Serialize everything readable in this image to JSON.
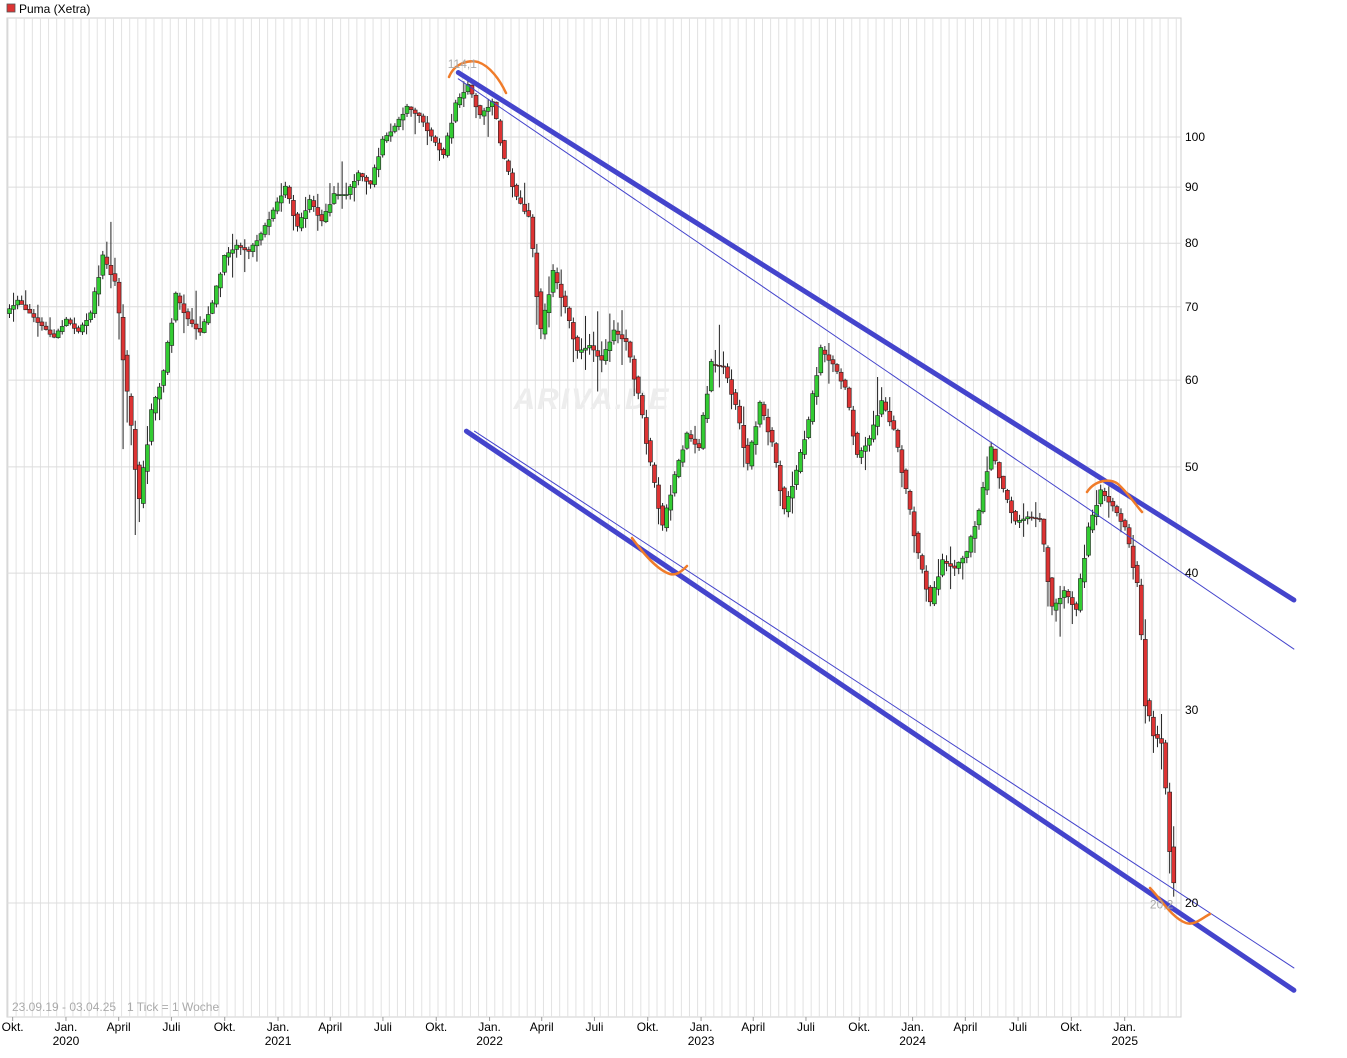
{
  "chart_data": {
    "type": "candlestick",
    "title": "Puma (Xetra)",
    "y_scale": "log",
    "ylim": [
      17.5,
      120
    ],
    "y_ticks": [
      20,
      30,
      40,
      50,
      60,
      70,
      80,
      90,
      100
    ],
    "y_tick_labels": [
      "20",
      "30",
      "40",
      "50",
      "60",
      "70",
      "80",
      "90",
      "100"
    ],
    "xlim": [
      "2019-09-23",
      "2025-04-03"
    ],
    "x_month_ticks": [
      {
        "date": "2019-10-01",
        "label": "Okt."
      },
      {
        "date": "2020-01-01",
        "label": "Jan."
      },
      {
        "date": "2020-04-01",
        "label": "April"
      },
      {
        "date": "2020-07-01",
        "label": "Juli"
      },
      {
        "date": "2020-10-01",
        "label": "Okt."
      },
      {
        "date": "2021-01-01",
        "label": "Jan."
      },
      {
        "date": "2021-04-01",
        "label": "April"
      },
      {
        "date": "2021-07-01",
        "label": "Juli"
      },
      {
        "date": "2021-10-01",
        "label": "Okt."
      },
      {
        "date": "2022-01-01",
        "label": "Jan."
      },
      {
        "date": "2022-04-01",
        "label": "April"
      },
      {
        "date": "2022-07-01",
        "label": "Juli"
      },
      {
        "date": "2022-10-01",
        "label": "Okt."
      },
      {
        "date": "2023-01-01",
        "label": "Jan."
      },
      {
        "date": "2023-04-01",
        "label": "April"
      },
      {
        "date": "2023-07-01",
        "label": "Juli"
      },
      {
        "date": "2023-10-01",
        "label": "Okt."
      },
      {
        "date": "2024-01-01",
        "label": "Jan."
      },
      {
        "date": "2024-04-01",
        "label": "April"
      },
      {
        "date": "2024-07-01",
        "label": "Juli"
      },
      {
        "date": "2024-10-01",
        "label": "Okt."
      },
      {
        "date": "2025-01-01",
        "label": "Jan."
      }
    ],
    "x_year_ticks": [
      {
        "date": "2020-01-01",
        "label": "2020"
      },
      {
        "date": "2021-01-01",
        "label": "2021"
      },
      {
        "date": "2022-01-01",
        "label": "2022"
      },
      {
        "date": "2023-01-01",
        "label": "2023"
      },
      {
        "date": "2024-01-01",
        "label": "2024"
      },
      {
        "date": "2025-01-01",
        "label": "2025"
      }
    ],
    "range_label": "23.09.19 - 03.04.25",
    "tick_label": "1 Tick = 1 Woche",
    "watermark": "ARIVA.DE",
    "annotations": {
      "high": {
        "date": "2021-11-15",
        "value": 114.1,
        "label": "114,1"
      },
      "low": {
        "date": "2025-03-31",
        "value": 20.2,
        "label": "20,2"
      }
    },
    "up_color": "#33cc33",
    "down_color": "#dd3333",
    "trendline_color": "#4444cc",
    "marker_color": "#f07c2a",
    "trend_channel": {
      "upper_thick": [
        {
          "date": "2021-11-08",
          "value": 114.5
        },
        {
          "date": "2025-10-20",
          "value": 37.8
        }
      ],
      "upper_thin": [
        {
          "date": "2021-11-08",
          "value": 113
        },
        {
          "date": "2025-10-20",
          "value": 34.1
        }
      ],
      "lower_thin": [
        {
          "date": "2021-12-06",
          "value": 53.9
        },
        {
          "date": "2025-10-20",
          "value": 17.45
        }
      ],
      "lower_thick": [
        {
          "date": "2021-11-22",
          "value": 53.9
        },
        {
          "date": "2025-10-20",
          "value": 16.65
        }
      ]
    },
    "candles_ohlc": [
      [
        "2019-09-23",
        69.0,
        72.8,
        67.2,
        70.9
      ],
      [
        "2019-10-14",
        70.9,
        73.1,
        69.0,
        69.0
      ],
      [
        "2019-11-04",
        69.0,
        70.9,
        65.2,
        67.2
      ],
      [
        "2019-11-25",
        67.2,
        69.0,
        65.2,
        65.6
      ],
      [
        "2019-12-16",
        65.6,
        69.0,
        65.2,
        68.1
      ],
      [
        "2020-01-06",
        68.1,
        69.0,
        65.6,
        66.4
      ],
      [
        "2020-01-27",
        66.4,
        70.0,
        65.2,
        69.0
      ],
      [
        "2020-02-17",
        69.0,
        79.6,
        67.2,
        77.7
      ],
      [
        "2020-03-09",
        77.7,
        85.0,
        71.6,
        73.7
      ],
      [
        "2020-03-30",
        73.7,
        75.6,
        47.3,
        58.0
      ],
      [
        "2020-04-20",
        58.0,
        59.0,
        39.9,
        46.3
      ],
      [
        "2020-05-11",
        46.3,
        58.1,
        45.0,
        56.0
      ],
      [
        "2020-06-01",
        56.0,
        61.5,
        53.5,
        61.0
      ],
      [
        "2020-06-22",
        61.0,
        72.3,
        60.0,
        71.6
      ],
      [
        "2020-07-13",
        71.6,
        73.0,
        65.2,
        68.1
      ],
      [
        "2020-08-03",
        68.1,
        73.0,
        64.8,
        66.3
      ],
      [
        "2020-08-24",
        66.3,
        71.6,
        66.0,
        70.4
      ],
      [
        "2020-09-14",
        70.4,
        78.0,
        69.0,
        77.7
      ],
      [
        "2020-10-05",
        77.7,
        82.3,
        73.8,
        79.6
      ],
      [
        "2020-10-26",
        79.6,
        81.0,
        75.0,
        78.6
      ],
      [
        "2020-11-16",
        78.6,
        82.5,
        76.0,
        81.5
      ],
      [
        "2020-12-07",
        81.5,
        87.0,
        80.0,
        85.6
      ],
      [
        "2020-12-28",
        85.6,
        92.4,
        84.0,
        90.0
      ],
      [
        "2021-01-18",
        90.0,
        91.0,
        80.0,
        82.6
      ],
      [
        "2021-02-08",
        82.6,
        90.0,
        81.0,
        87.5
      ],
      [
        "2021-03-01",
        87.5,
        90.0,
        81.0,
        83.7
      ],
      [
        "2021-03-22",
        83.7,
        92.6,
        83.0,
        88.6
      ],
      [
        "2021-04-12",
        88.6,
        95.0,
        86.0,
        88.6
      ],
      [
        "2021-05-03",
        88.6,
        94.0,
        86.0,
        92.6
      ],
      [
        "2021-05-24",
        92.6,
        93.0,
        88.0,
        90.5
      ],
      [
        "2021-06-14",
        90.5,
        101.0,
        89.0,
        99.2
      ],
      [
        "2021-07-05",
        99.2,
        104.0,
        98.0,
        102.2
      ],
      [
        "2021-07-26",
        102.2,
        108.0,
        100.0,
        106.5
      ],
      [
        "2021-08-16",
        106.5,
        107.0,
        100.0,
        104.5
      ],
      [
        "2021-09-06",
        104.5,
        106.0,
        97.0,
        100.0
      ],
      [
        "2021-09-27",
        100.0,
        101.0,
        94.0,
        96.2
      ],
      [
        "2021-10-18",
        96.2,
        109.0,
        95.0,
        107.0
      ],
      [
        "2021-11-08",
        107.0,
        114.1,
        105.0,
        111.5
      ],
      [
        "2021-11-29",
        111.5,
        112.0,
        102.0,
        104.5
      ],
      [
        "2021-12-20",
        104.5,
        109.5,
        99.0,
        107.6
      ],
      [
        "2022-01-10",
        107.6,
        108.0,
        94.5,
        95.1
      ],
      [
        "2022-01-31",
        95.1,
        96.0,
        86.0,
        88.0
      ],
      [
        "2022-02-21",
        88.0,
        92.0,
        84.0,
        84.5
      ],
      [
        "2022-03-14",
        84.5,
        86.0,
        62.0,
        66.1
      ],
      [
        "2022-04-04",
        66.1,
        78.0,
        64.0,
        75.2
      ],
      [
        "2022-04-25",
        75.2,
        77.5,
        67.0,
        69.8
      ],
      [
        "2022-05-16",
        69.8,
        70.5,
        60.5,
        63.6
      ],
      [
        "2022-06-06",
        63.6,
        69.0,
        61.0,
        64.5
      ],
      [
        "2022-06-27",
        64.5,
        70.0,
        58.0,
        62.5
      ],
      [
        "2022-07-18",
        62.5,
        70.5,
        61.0,
        66.5
      ],
      [
        "2022-08-08",
        66.5,
        70.0,
        61.5,
        65.0
      ],
      [
        "2022-08-29",
        65.0,
        65.5,
        56.0,
        58.1
      ],
      [
        "2022-09-19",
        58.1,
        59.0,
        49.0,
        50.2
      ],
      [
        "2022-10-10",
        50.2,
        51.0,
        42.5,
        44.0
      ],
      [
        "2022-10-31",
        44.0,
        50.0,
        43.0,
        49.0
      ],
      [
        "2022-11-21",
        49.0,
        54.0,
        48.5,
        53.5
      ],
      [
        "2022-12-12",
        53.5,
        55.0,
        51.0,
        52.0
      ],
      [
        "2023-01-02",
        52.0,
        63.0,
        51.5,
        62.0
      ],
      [
        "2023-01-23",
        62.0,
        67.5,
        59.0,
        61.7
      ],
      [
        "2023-02-13",
        61.7,
        63.0,
        55.0,
        56.8
      ],
      [
        "2023-03-06",
        56.8,
        59.0,
        48.0,
        50.1
      ],
      [
        "2023-03-27",
        50.1,
        57.6,
        49.0,
        57.0
      ],
      [
        "2023-04-17",
        57.0,
        58.0,
        51.0,
        52.5
      ],
      [
        "2023-05-08",
        52.5,
        53.0,
        44.0,
        45.5
      ],
      [
        "2023-05-29",
        45.5,
        51.0,
        44.0,
        49.5
      ],
      [
        "2023-06-19",
        49.5,
        56.0,
        49.0,
        55.0
      ],
      [
        "2023-07-10",
        55.0,
        65.0,
        54.0,
        63.9
      ],
      [
        "2023-07-31",
        63.9,
        65.5,
        59.0,
        62.0
      ],
      [
        "2023-08-21",
        62.0,
        62.5,
        58.0,
        59.0
      ],
      [
        "2023-09-11",
        59.0,
        59.5,
        50.0,
        51.0
      ],
      [
        "2023-10-02",
        51.0,
        54.0,
        49.0,
        53.0
      ],
      [
        "2023-10-23",
        53.0,
        62.0,
        52.0,
        57.3
      ],
      [
        "2023-11-13",
        57.3,
        59.0,
        53.5,
        54.0
      ],
      [
        "2023-12-04",
        54.0,
        54.5,
        46.0,
        47.5
      ],
      [
        "2023-12-25",
        47.5,
        48.0,
        40.0,
        41.5
      ],
      [
        "2024-01-15",
        41.5,
        42.0,
        36.5,
        37.5
      ],
      [
        "2024-02-05",
        37.5,
        42.5,
        37.0,
        41.0
      ],
      [
        "2024-02-26",
        41.0,
        42.5,
        38.5,
        40.4
      ],
      [
        "2024-03-18",
        40.4,
        42.0,
        39.0,
        41.8
      ],
      [
        "2024-04-08",
        41.8,
        46.0,
        40.5,
        45.5
      ],
      [
        "2024-04-29",
        45.5,
        53.5,
        45.0,
        51.9
      ],
      [
        "2024-05-20",
        51.9,
        52.0,
        46.5,
        47.6
      ],
      [
        "2024-06-10",
        47.6,
        48.0,
        43.5,
        44.5
      ],
      [
        "2024-07-01",
        44.5,
        46.5,
        43.0,
        45.0
      ],
      [
        "2024-07-22",
        45.0,
        46.5,
        44.0,
        44.8
      ],
      [
        "2024-08-12",
        44.8,
        45.0,
        35.0,
        37.0
      ],
      [
        "2024-09-02",
        37.0,
        39.5,
        34.5,
        38.5
      ],
      [
        "2024-09-23",
        38.5,
        39.0,
        35.5,
        37.0
      ],
      [
        "2024-10-14",
        37.0,
        45.0,
        36.5,
        43.8
      ],
      [
        "2024-11-04",
        43.8,
        49.0,
        43.0,
        47.5
      ],
      [
        "2024-11-25",
        47.5,
        48.5,
        44.5,
        46.0
      ],
      [
        "2024-12-16",
        46.0,
        46.5,
        43.0,
        44.0
      ],
      [
        "2025-01-06",
        44.0,
        45.0,
        38.0,
        39.0
      ],
      [
        "2025-01-27",
        39.0,
        40.5,
        29.5,
        30.6
      ],
      [
        "2025-02-10",
        30.6,
        31.0,
        27.5,
        28.5
      ],
      [
        "2025-02-24",
        28.5,
        30.0,
        26.5,
        28.0
      ],
      [
        "2025-03-10",
        28.0,
        28.5,
        21.5,
        22.5
      ],
      [
        "2025-03-24",
        22.5,
        23.5,
        20.2,
        20.8
      ]
    ]
  }
}
